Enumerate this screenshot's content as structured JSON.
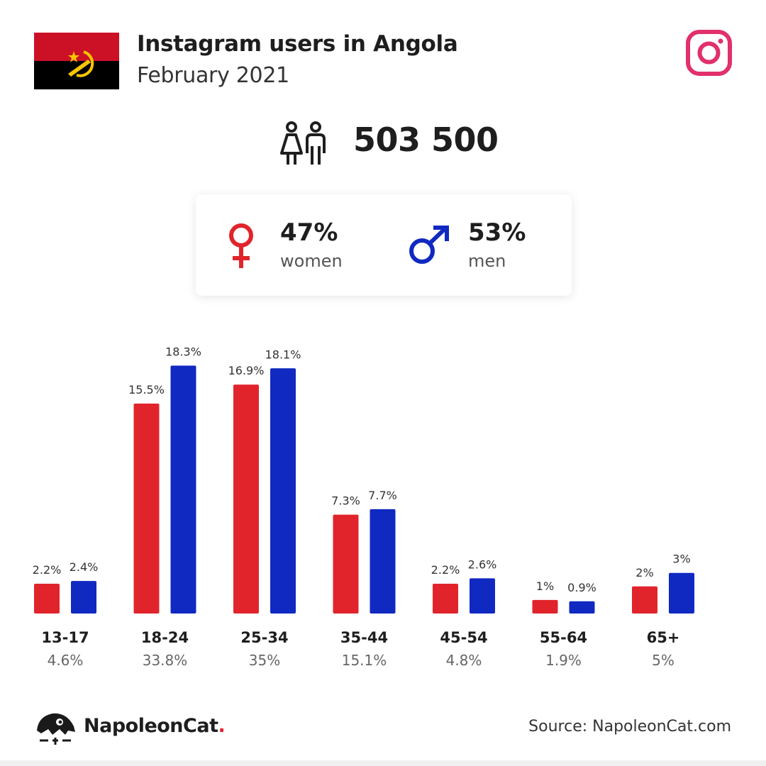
{
  "header": {
    "title": "Instagram users in Angola",
    "subtitle": "February 2021",
    "flag_icon": "angola-flag-icon",
    "brand_icon": "instagram-icon"
  },
  "total": {
    "value": "503 500",
    "icon": "people-icon"
  },
  "gender": {
    "women": {
      "percent": "47%",
      "label": "women",
      "icon": "female-symbol-icon",
      "color": "#e1242b"
    },
    "men": {
      "percent": "53%",
      "label": "men",
      "icon": "male-symbol-icon",
      "color": "#1029c1"
    }
  },
  "chart_data": {
    "type": "bar",
    "categories": [
      "13-17",
      "18-24",
      "25-34",
      "35-44",
      "45-54",
      "55-64",
      "65+"
    ],
    "category_totals": [
      "4.6%",
      "33.8%",
      "35%",
      "15.1%",
      "4.8%",
      "1.9%",
      "5%"
    ],
    "series": [
      {
        "name": "women",
        "color": "#e1242b",
        "values": [
          2.2,
          15.5,
          16.9,
          7.3,
          2.2,
          1,
          2
        ],
        "labels": [
          "2.2%",
          "15.5%",
          "16.9%",
          "7.3%",
          "2.2%",
          "1%",
          "2%"
        ]
      },
      {
        "name": "men",
        "color": "#1029c1",
        "values": [
          2.4,
          18.3,
          18.1,
          7.7,
          2.6,
          0.9,
          3
        ],
        "labels": [
          "2.4%",
          "18.3%",
          "18.1%",
          "7.7%",
          "2.6%",
          "0.9%",
          "3%"
        ]
      }
    ],
    "grid": false,
    "legend": "none"
  },
  "footer": {
    "brand_name": "NapoleonCat",
    "brand_dot": ".",
    "logo_icon": "napoleoncat-logo-icon",
    "source": "Source: NapoleonCat.com"
  }
}
